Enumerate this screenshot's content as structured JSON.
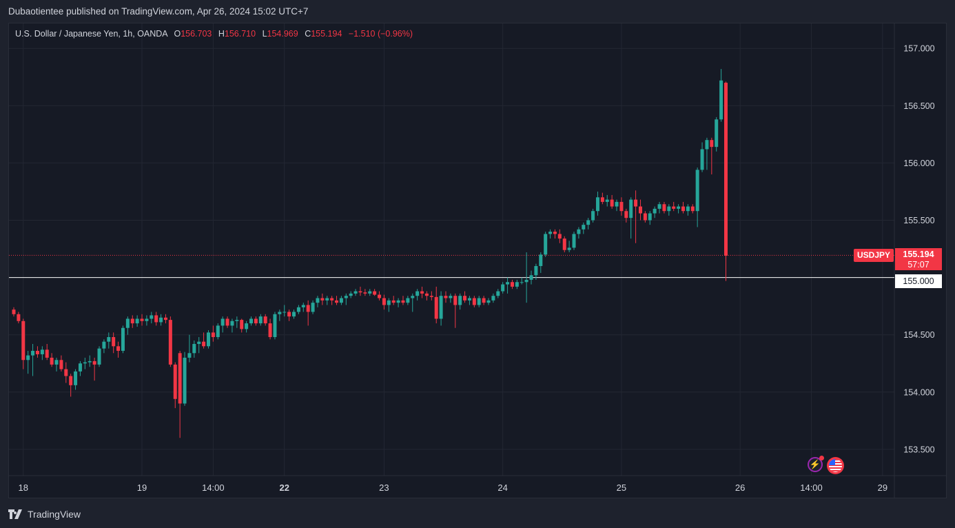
{
  "publisher": "Dubaotientee published on TradingView.com, Apr 26, 2024 15:02 UTC+7",
  "legend": {
    "symbol_desc": "U.S. Dollar / Japanese Yen, 1h, OANDA",
    "open_label": "O",
    "open": "156.703",
    "high_label": "H",
    "high": "156.710",
    "low_label": "L",
    "low": "154.969",
    "close_label": "C",
    "close": "155.194",
    "change": "−1.510 (−0.96%)"
  },
  "price_tag": {
    "symbol": "USDJPY",
    "price": "155.194",
    "countdown": "57:07"
  },
  "line_tag": "155.000",
  "brand": "TradingView",
  "events": {
    "lightning_icon": "lightning-icon",
    "flag_icon": "us-flag-icon"
  },
  "colors": {
    "up": "#26a69a",
    "down": "#f23645",
    "background": "#161a25",
    "grid": "#232733",
    "text": "#d1d4dc",
    "horizontal_line": "#ffffff"
  },
  "chart_data": {
    "type": "candlestick",
    "title": "U.S. Dollar / Japanese Yen, 1h, OANDA",
    "ylim": [
      153.3,
      157.2
    ],
    "y_ticks": [
      "157.000",
      "156.500",
      "156.000",
      "155.500",
      "155.000",
      "154.500",
      "154.000",
      "153.500"
    ],
    "x_ticks": [
      {
        "label": "18",
        "i": 2,
        "bold": false
      },
      {
        "label": "19",
        "i": 27,
        "bold": false
      },
      {
        "label": "14:00",
        "i": 42,
        "bold": false
      },
      {
        "label": "22",
        "i": 57,
        "bold": true
      },
      {
        "label": "23",
        "i": 78,
        "bold": false
      },
      {
        "label": "24",
        "i": 103,
        "bold": false
      },
      {
        "label": "25",
        "i": 128,
        "bold": false
      },
      {
        "label": "26",
        "i": 153,
        "bold": false
      },
      {
        "label": "14:00",
        "i": 168,
        "bold": false
      },
      {
        "label": "29",
        "i": 183,
        "bold": false
      }
    ],
    "horizontal_line": 155.0,
    "last_price": 155.194,
    "candles": [
      [
        154.72,
        154.74,
        154.66,
        154.68
      ],
      [
        154.68,
        154.7,
        154.6,
        154.62
      ],
      [
        154.62,
        154.64,
        154.2,
        154.28
      ],
      [
        154.28,
        154.36,
        154.16,
        154.32
      ],
      [
        154.32,
        154.42,
        154.14,
        154.36
      ],
      [
        154.36,
        154.4,
        154.3,
        154.33
      ],
      [
        154.33,
        154.4,
        154.28,
        154.37
      ],
      [
        154.37,
        154.42,
        154.28,
        154.3
      ],
      [
        154.3,
        154.34,
        154.22,
        154.24
      ],
      [
        154.24,
        154.3,
        154.18,
        154.28
      ],
      [
        154.28,
        154.32,
        154.18,
        154.2
      ],
      [
        154.2,
        154.26,
        154.08,
        154.14
      ],
      [
        154.14,
        154.16,
        153.96,
        154.06
      ],
      [
        154.06,
        154.2,
        154.02,
        154.18
      ],
      [
        154.18,
        154.27,
        154.14,
        154.25
      ],
      [
        154.25,
        154.3,
        154.2,
        154.26
      ],
      [
        154.26,
        154.32,
        154.22,
        154.27
      ],
      [
        154.27,
        154.3,
        154.1,
        154.24
      ],
      [
        154.24,
        154.4,
        154.22,
        154.38
      ],
      [
        154.38,
        154.46,
        154.34,
        154.44
      ],
      [
        154.44,
        154.52,
        154.38,
        154.48
      ],
      [
        154.48,
        154.52,
        154.34,
        154.4
      ],
      [
        154.4,
        154.44,
        154.3,
        154.36
      ],
      [
        154.36,
        154.58,
        154.34,
        154.56
      ],
      [
        154.56,
        154.66,
        154.5,
        154.64
      ],
      [
        154.64,
        154.67,
        154.56,
        154.6
      ],
      [
        154.6,
        154.67,
        154.57,
        154.64
      ],
      [
        154.64,
        154.68,
        154.58,
        154.62
      ],
      [
        154.62,
        154.67,
        154.58,
        154.64
      ],
      [
        154.64,
        154.7,
        154.6,
        154.67
      ],
      [
        154.67,
        154.7,
        154.58,
        154.61
      ],
      [
        154.61,
        154.68,
        154.58,
        154.65
      ],
      [
        154.65,
        154.68,
        154.6,
        154.63
      ],
      [
        154.63,
        154.66,
        154.22,
        154.24
      ],
      [
        154.24,
        154.26,
        153.86,
        153.94
      ],
      [
        154.34,
        154.36,
        153.6,
        153.9
      ],
      [
        153.9,
        154.35,
        153.88,
        154.3
      ],
      [
        154.3,
        154.5,
        154.26,
        154.34
      ],
      [
        154.34,
        154.45,
        154.3,
        154.42
      ],
      [
        154.42,
        154.48,
        154.34,
        154.44
      ],
      [
        154.44,
        154.52,
        154.38,
        154.4
      ],
      [
        154.4,
        154.54,
        154.38,
        154.52
      ],
      [
        154.52,
        154.58,
        154.44,
        154.48
      ],
      [
        154.48,
        154.6,
        154.46,
        154.58
      ],
      [
        154.58,
        154.66,
        154.52,
        154.64
      ],
      [
        154.64,
        154.66,
        154.56,
        154.58
      ],
      [
        154.58,
        154.64,
        154.52,
        154.62
      ],
      [
        154.62,
        154.66,
        154.56,
        154.63
      ],
      [
        154.63,
        154.64,
        154.52,
        154.55
      ],
      [
        154.55,
        154.62,
        154.52,
        154.6
      ],
      [
        154.6,
        154.66,
        154.58,
        154.64
      ],
      [
        154.64,
        154.66,
        154.58,
        154.6
      ],
      [
        154.6,
        154.68,
        154.58,
        154.66
      ],
      [
        154.66,
        154.68,
        154.58,
        154.6
      ],
      [
        154.6,
        154.64,
        154.46,
        154.48
      ],
      [
        154.48,
        154.7,
        154.46,
        154.68
      ],
      [
        154.68,
        154.72,
        154.62,
        154.7
      ],
      [
        154.7,
        154.76,
        154.66,
        154.7
      ],
      [
        154.7,
        154.72,
        154.62,
        154.66
      ],
      [
        154.66,
        154.72,
        154.64,
        154.7
      ],
      [
        154.7,
        154.76,
        154.68,
        154.74
      ],
      [
        154.74,
        154.78,
        154.7,
        154.76
      ],
      [
        154.76,
        154.8,
        154.58,
        154.7
      ],
      [
        154.7,
        154.8,
        154.68,
        154.78
      ],
      [
        154.78,
        154.84,
        154.74,
        154.82
      ],
      [
        154.82,
        154.86,
        154.76,
        154.8
      ],
      [
        154.8,
        154.84,
        154.76,
        154.82
      ],
      [
        154.82,
        154.84,
        154.76,
        154.8
      ],
      [
        154.8,
        154.84,
        154.76,
        154.78
      ],
      [
        154.78,
        154.84,
        154.76,
        154.82
      ],
      [
        154.82,
        154.86,
        154.76,
        154.84
      ],
      [
        154.84,
        154.88,
        154.82,
        154.86
      ],
      [
        154.86,
        154.9,
        154.84,
        154.88
      ],
      [
        154.88,
        154.92,
        154.84,
        154.87
      ],
      [
        154.87,
        154.9,
        154.84,
        154.86
      ],
      [
        154.86,
        154.9,
        154.84,
        154.88
      ],
      [
        154.88,
        154.9,
        154.84,
        154.85
      ],
      [
        154.85,
        154.88,
        154.8,
        154.82
      ],
      [
        154.82,
        154.85,
        154.72,
        154.76
      ],
      [
        154.76,
        154.82,
        154.7,
        154.8
      ],
      [
        154.8,
        154.84,
        154.76,
        154.78
      ],
      [
        154.78,
        154.82,
        154.74,
        154.8
      ],
      [
        154.8,
        154.84,
        154.76,
        154.78
      ],
      [
        154.78,
        154.84,
        154.76,
        154.82
      ],
      [
        154.82,
        154.86,
        154.7,
        154.84
      ],
      [
        154.84,
        154.9,
        154.8,
        154.88
      ],
      [
        154.88,
        154.92,
        154.82,
        154.86
      ],
      [
        154.86,
        154.88,
        154.8,
        154.84
      ],
      [
        154.84,
        154.88,
        154.8,
        154.83
      ],
      [
        154.83,
        154.92,
        154.6,
        154.64
      ],
      [
        154.64,
        154.88,
        154.58,
        154.84
      ],
      [
        154.84,
        154.88,
        154.78,
        154.82
      ],
      [
        154.82,
        154.86,
        154.78,
        154.84
      ],
      [
        154.84,
        154.86,
        154.56,
        154.76
      ],
      [
        154.76,
        154.86,
        154.72,
        154.84
      ],
      [
        154.84,
        154.88,
        154.78,
        154.8
      ],
      [
        154.8,
        154.84,
        154.76,
        154.82
      ],
      [
        154.82,
        154.84,
        154.74,
        154.76
      ],
      [
        154.76,
        154.84,
        154.74,
        154.82
      ],
      [
        154.82,
        154.84,
        154.76,
        154.78
      ],
      [
        154.78,
        154.82,
        154.76,
        154.8
      ],
      [
        154.8,
        154.86,
        154.78,
        154.84
      ],
      [
        154.84,
        154.9,
        154.82,
        154.88
      ],
      [
        154.88,
        154.96,
        154.86,
        154.94
      ],
      [
        154.94,
        155.0,
        154.86,
        154.96
      ],
      [
        154.96,
        154.98,
        154.9,
        154.92
      ],
      [
        154.92,
        154.98,
        154.9,
        154.96
      ],
      [
        154.96,
        155.0,
        154.94,
        154.96
      ],
      [
        154.96,
        155.22,
        154.78,
        154.98
      ],
      [
        154.98,
        155.06,
        154.94,
        155.02
      ],
      [
        155.02,
        155.12,
        154.98,
        155.1
      ],
      [
        155.1,
        155.22,
        155.04,
        155.2
      ],
      [
        155.2,
        155.4,
        155.18,
        155.38
      ],
      [
        155.38,
        155.42,
        155.34,
        155.4
      ],
      [
        155.4,
        155.42,
        155.34,
        155.38
      ],
      [
        155.38,
        155.42,
        155.3,
        155.34
      ],
      [
        155.34,
        155.36,
        155.22,
        155.24
      ],
      [
        155.24,
        155.32,
        155.22,
        155.26
      ],
      [
        155.26,
        155.4,
        155.24,
        155.38
      ],
      [
        155.38,
        155.44,
        155.34,
        155.42
      ],
      [
        155.42,
        155.48,
        155.38,
        155.46
      ],
      [
        155.46,
        155.52,
        155.42,
        155.5
      ],
      [
        155.5,
        155.6,
        155.48,
        155.58
      ],
      [
        155.58,
        155.75,
        155.54,
        155.7
      ],
      [
        155.7,
        155.74,
        155.64,
        155.66
      ],
      [
        155.66,
        155.72,
        155.62,
        155.68
      ],
      [
        155.68,
        155.72,
        155.6,
        155.62
      ],
      [
        155.62,
        155.68,
        155.58,
        155.66
      ],
      [
        155.66,
        155.7,
        155.54,
        155.58
      ],
      [
        155.58,
        155.6,
        155.48,
        155.52
      ],
      [
        155.52,
        155.7,
        155.34,
        155.68
      ],
      [
        155.68,
        155.76,
        155.3,
        155.62
      ],
      [
        155.62,
        155.68,
        155.5,
        155.56
      ],
      [
        155.56,
        155.58,
        155.48,
        155.5
      ],
      [
        155.5,
        155.58,
        155.46,
        155.56
      ],
      [
        155.56,
        155.62,
        155.52,
        155.6
      ],
      [
        155.6,
        155.66,
        155.56,
        155.64
      ],
      [
        155.64,
        155.66,
        155.56,
        155.58
      ],
      [
        155.58,
        155.64,
        155.54,
        155.62
      ],
      [
        155.62,
        155.66,
        155.58,
        155.6
      ],
      [
        155.6,
        155.64,
        155.56,
        155.62
      ],
      [
        155.62,
        155.66,
        155.56,
        155.58
      ],
      [
        155.58,
        155.64,
        155.54,
        155.62
      ],
      [
        155.62,
        155.64,
        155.56,
        155.58
      ],
      [
        155.58,
        155.96,
        155.44,
        155.94
      ],
      [
        155.94,
        156.18,
        155.92,
        156.12
      ],
      [
        156.12,
        156.22,
        155.94,
        156.2
      ],
      [
        156.2,
        156.22,
        155.9,
        156.14
      ],
      [
        156.14,
        156.4,
        156.1,
        156.38
      ],
      [
        156.38,
        156.82,
        156.36,
        156.72
      ],
      [
        156.7,
        156.71,
        154.97,
        155.19
      ]
    ]
  }
}
